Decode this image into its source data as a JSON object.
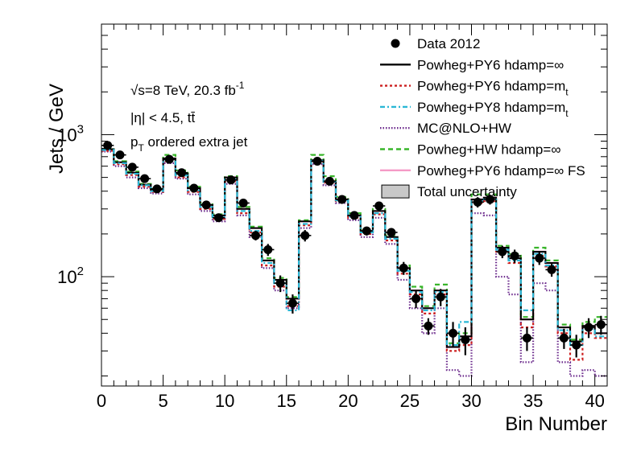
{
  "chart_data": {
    "type": "line",
    "xlabel": "Bin Number",
    "ylabel": "Jets / GeV",
    "xlim": [
      0,
      41
    ],
    "ylim": [
      17,
      6000
    ],
    "log_y": true,
    "x_ticks": [
      0,
      5,
      10,
      15,
      20,
      25,
      30,
      35,
      40
    ],
    "y_ticks": [
      {
        "value": 100,
        "base": "10",
        "exp": "2"
      },
      {
        "value": 1000,
        "base": "10",
        "exp": "3"
      }
    ],
    "annotations": {
      "sqrt_s": "√s=8 TeV, 20.3 fb",
      "sqrt_s_sup": "-1",
      "eta_cut": "|η| < 4.5, tt̄",
      "pt_p": "p",
      "pt_sub": "T",
      "pt_rest": " ordered extra jet"
    },
    "legend": {
      "placement": "top-right",
      "entries": [
        {
          "label": "Data 2012",
          "style": "marker",
          "color": "#000000"
        },
        {
          "label": "Powheg+PY6 hdamp=∞",
          "style": "solid",
          "color": "#000000"
        },
        {
          "label": "Powheg+PY6 hdamp=m",
          "sub": "t",
          "style": "dot",
          "color": "#cc1f1f"
        },
        {
          "label": "Powheg+PY8 hdamp=m",
          "sub": "t",
          "style": "dashdot",
          "color": "#2ab7d6"
        },
        {
          "label": "MC@NLO+HW",
          "style": "finedot",
          "color": "#6b2a8c"
        },
        {
          "label": "Powheg+HW hdamp=∞",
          "style": "dash",
          "color": "#38b52a"
        },
        {
          "label": "Powheg+PY6 hdamp=∞ FS",
          "style": "solid",
          "color": "#f59ac6"
        },
        {
          "label": "Total uncertainty",
          "style": "box",
          "color": "#c8c8c8"
        }
      ]
    },
    "data": {
      "x": [
        0.5,
        1.5,
        2.5,
        3.5,
        4.5,
        5.5,
        6.5,
        7.5,
        8.5,
        9.5,
        10.5,
        11.5,
        12.5,
        13.5,
        14.5,
        15.5,
        16.5,
        17.5,
        18.5,
        19.5,
        20.5,
        21.5,
        22.5,
        23.5,
        24.5,
        25.5,
        26.5,
        27.5,
        28.5,
        29.5,
        30.5,
        31.5,
        32.5,
        33.5,
        34.5,
        35.5,
        36.5,
        37.5,
        38.5,
        39.5,
        40.5
      ],
      "y": [
        840,
        720,
        590,
        490,
        415,
        670,
        540,
        420,
        320,
        260,
        480,
        330,
        195,
        155,
        90,
        65,
        195,
        650,
        470,
        350,
        270,
        210,
        315,
        205,
        115,
        70,
        45,
        72,
        40,
        36,
        335,
        350,
        150,
        140,
        37,
        135,
        112,
        37,
        33,
        44,
        46
      ],
      "err": [
        40,
        35,
        30,
        25,
        20,
        35,
        25,
        20,
        15,
        15,
        30,
        20,
        15,
        15,
        12,
        10,
        18,
        35,
        28,
        22,
        18,
        15,
        20,
        15,
        12,
        10,
        6,
        10,
        8,
        8,
        28,
        28,
        15,
        15,
        7,
        14,
        12,
        6,
        6,
        7,
        7
      ]
    },
    "series": [
      {
        "name": "Powheg+PY6 hdamp=∞",
        "color": "#000000",
        "style": "solid",
        "values": [
          790,
          640,
          540,
          445,
          410,
          680,
          530,
          420,
          320,
          270,
          500,
          300,
          220,
          130,
          95,
          70,
          245,
          660,
          470,
          350,
          270,
          210,
          290,
          190,
          115,
          80,
          60,
          80,
          32,
          38,
          350,
          360,
          160,
          135,
          50,
          150,
          125,
          44,
          35,
          45,
          40
        ]
      },
      {
        "name": "Powheg+PY6 hdamp=m_t",
        "color": "#cc1f1f",
        "style": "dot",
        "values": [
          770,
          620,
          520,
          430,
          395,
          650,
          500,
          395,
          300,
          255,
          470,
          280,
          205,
          120,
          85,
          62,
          230,
          650,
          460,
          340,
          260,
          200,
          275,
          180,
          105,
          75,
          55,
          75,
          30,
          33,
          330,
          340,
          150,
          125,
          44,
          140,
          118,
          40,
          26,
          40,
          37
        ]
      },
      {
        "name": "Powheg+PY8 hdamp=m_t",
        "color": "#2ab7d6",
        "style": "dashdot",
        "values": [
          780,
          630,
          530,
          440,
          400,
          660,
          515,
          405,
          310,
          262,
          485,
          290,
          210,
          125,
          90,
          58,
          235,
          655,
          465,
          345,
          265,
          205,
          280,
          185,
          110,
          78,
          58,
          78,
          33,
          48,
          340,
          350,
          155,
          130,
          58,
          145,
          120,
          42,
          33,
          43,
          38
        ]
      },
      {
        "name": "MC@NLO+HW",
        "color": "#6b2a8c",
        "style": "finedot",
        "values": [
          760,
          600,
          500,
          420,
          385,
          630,
          490,
          380,
          290,
          245,
          450,
          270,
          190,
          115,
          80,
          60,
          220,
          620,
          440,
          330,
          250,
          190,
          260,
          170,
          95,
          60,
          40,
          60,
          22,
          20,
          280,
          270,
          100,
          75,
          25,
          90,
          80,
          25,
          20,
          22,
          20
        ]
      },
      {
        "name": "Powheg+HW hdamp=∞",
        "color": "#38b52a",
        "style": "dash",
        "values": [
          790,
          650,
          550,
          450,
          415,
          720,
          560,
          430,
          330,
          275,
          510,
          310,
          225,
          135,
          98,
          72,
          250,
          720,
          510,
          365,
          280,
          215,
          300,
          195,
          120,
          85,
          62,
          88,
          34,
          40,
          380,
          380,
          165,
          145,
          52,
          160,
          130,
          46,
          36,
          48,
          52
        ]
      },
      {
        "name": "Powheg+PY6 hdamp=∞ FS",
        "color": "#f59ac6",
        "style": "solid",
        "values": [
          785,
          640,
          540,
          445,
          410,
          680,
          530,
          420,
          320,
          270,
          500,
          300,
          220,
          130,
          95,
          70,
          245,
          660,
          470,
          350,
          270,
          210,
          290,
          190,
          115,
          80,
          60,
          80,
          32,
          38,
          350,
          360,
          160,
          135,
          50,
          150,
          125,
          44,
          35,
          45,
          40
        ]
      }
    ]
  }
}
